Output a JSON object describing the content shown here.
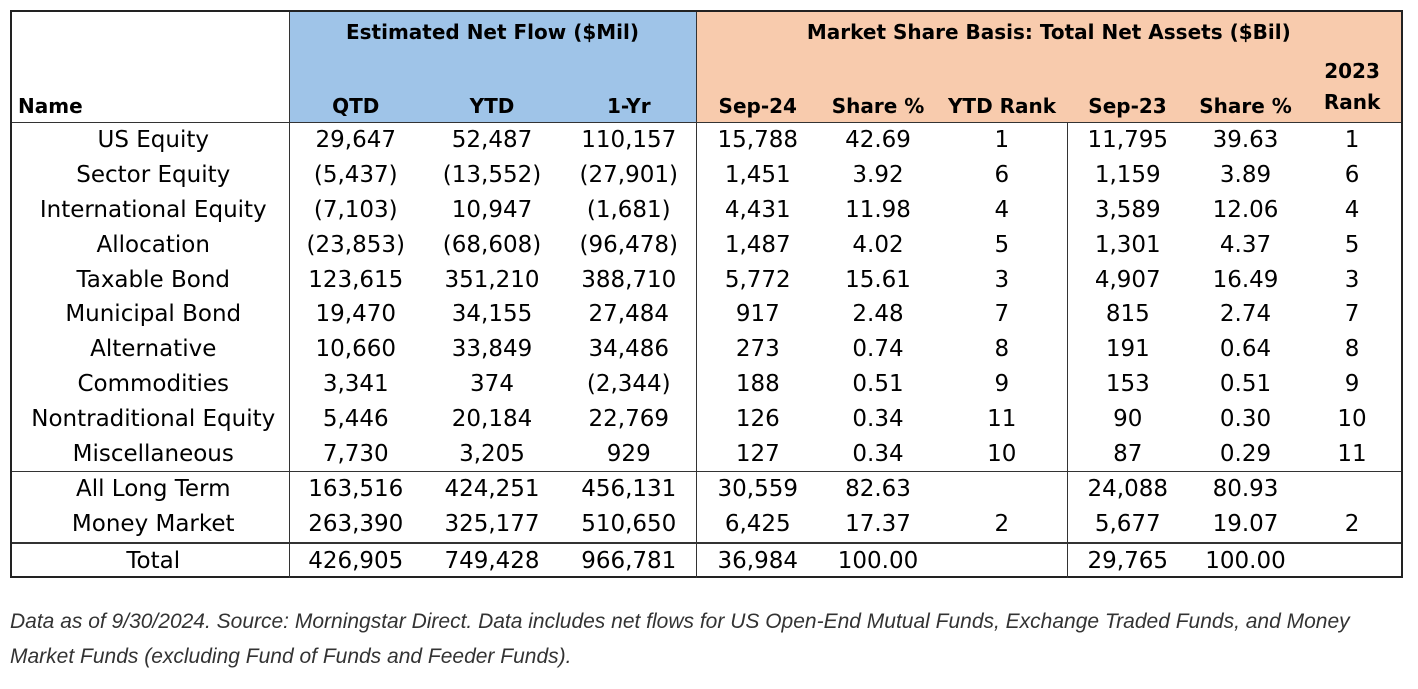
{
  "table": {
    "group_headers": {
      "net_flow": "Estimated Net Flow ($Mil)",
      "market_share": "Market Share Basis: Total Net Assets ($Bil)"
    },
    "columns": {
      "name": "Name",
      "qtd": "QTD",
      "ytd": "YTD",
      "one_yr": "1-Yr",
      "sep24": "Sep-24",
      "share24": "Share %",
      "ytd_rank": "YTD Rank",
      "sep23": "Sep-23",
      "share23": "Share %",
      "rank2023_line1": "2023",
      "rank2023_line2": "Rank"
    },
    "rows": [
      {
        "name": "US Equity",
        "qtd": "29,647",
        "ytd": "52,487",
        "one_yr": "110,157",
        "sep24": "15,788",
        "share24": "42.69",
        "ytd_rank": "1",
        "sep23": "11,795",
        "share23": "39.63",
        "rank2023": "1"
      },
      {
        "name": "Sector Equity",
        "qtd": "(5,437)",
        "ytd": "(13,552)",
        "one_yr": "(27,901)",
        "sep24": "1,451",
        "share24": "3.92",
        "ytd_rank": "6",
        "sep23": "1,159",
        "share23": "3.89",
        "rank2023": "6"
      },
      {
        "name": "International Equity",
        "qtd": "(7,103)",
        "ytd": "10,947",
        "one_yr": "(1,681)",
        "sep24": "4,431",
        "share24": "11.98",
        "ytd_rank": "4",
        "sep23": "3,589",
        "share23": "12.06",
        "rank2023": "4"
      },
      {
        "name": "Allocation",
        "qtd": "(23,853)",
        "ytd": "(68,608)",
        "one_yr": "(96,478)",
        "sep24": "1,487",
        "share24": "4.02",
        "ytd_rank": "5",
        "sep23": "1,301",
        "share23": "4.37",
        "rank2023": "5"
      },
      {
        "name": "Taxable Bond",
        "qtd": "123,615",
        "ytd": "351,210",
        "one_yr": "388,710",
        "sep24": "5,772",
        "share24": "15.61",
        "ytd_rank": "3",
        "sep23": "4,907",
        "share23": "16.49",
        "rank2023": "3"
      },
      {
        "name": "Municipal Bond",
        "qtd": "19,470",
        "ytd": "34,155",
        "one_yr": "27,484",
        "sep24": "917",
        "share24": "2.48",
        "ytd_rank": "7",
        "sep23": "815",
        "share23": "2.74",
        "rank2023": "7"
      },
      {
        "name": "Alternative",
        "qtd": "10,660",
        "ytd": "33,849",
        "one_yr": "34,486",
        "sep24": "273",
        "share24": "0.74",
        "ytd_rank": "8",
        "sep23": "191",
        "share23": "0.64",
        "rank2023": "8"
      },
      {
        "name": "Commodities",
        "qtd": "3,341",
        "ytd": "374",
        "one_yr": "(2,344)",
        "sep24": "188",
        "share24": "0.51",
        "ytd_rank": "9",
        "sep23": "153",
        "share23": "0.51",
        "rank2023": "9"
      },
      {
        "name": "Nontraditional Equity",
        "qtd": "5,446",
        "ytd": "20,184",
        "one_yr": "22,769",
        "sep24": "126",
        "share24": "0.34",
        "ytd_rank": "11",
        "sep23": "90",
        "share23": "0.30",
        "rank2023": "10"
      },
      {
        "name": "Miscellaneous",
        "qtd": "7,730",
        "ytd": "3,205",
        "one_yr": "929",
        "sep24": "127",
        "share24": "0.34",
        "ytd_rank": "10",
        "sep23": "87",
        "share23": "0.29",
        "rank2023": "11"
      }
    ],
    "summary_rows": [
      {
        "name": "All Long Term",
        "qtd": "163,516",
        "ytd": "424,251",
        "one_yr": "456,131",
        "sep24": "30,559",
        "share24": "82.63",
        "ytd_rank": "",
        "sep23": "24,088",
        "share23": "80.93",
        "rank2023": ""
      },
      {
        "name": "Money Market",
        "qtd": "263,390",
        "ytd": "325,177",
        "one_yr": "510,650",
        "sep24": "6,425",
        "share24": "17.37",
        "ytd_rank": "2",
        "sep23": "5,677",
        "share23": "19.07",
        "rank2023": "2"
      }
    ],
    "total_row": {
      "name": "Total",
      "qtd": "426,905",
      "ytd": "749,428",
      "one_yr": "966,781",
      "sep24": "36,984",
      "share24": "100.00",
      "ytd_rank": "",
      "sep23": "29,765",
      "share23": "100.00",
      "rank2023": ""
    }
  },
  "footnote": "Data as of 9/30/2024. Source: Morningstar Direct. Data includes net flows for US Open-End Mutual Funds, Exchange Traded Funds, and Money Market Funds (excluding Fund of Funds and Feeder Funds).",
  "colors": {
    "net_flow_header": "#9fc4e8",
    "market_share_header": "#f8cbad",
    "border": "#222222"
  }
}
